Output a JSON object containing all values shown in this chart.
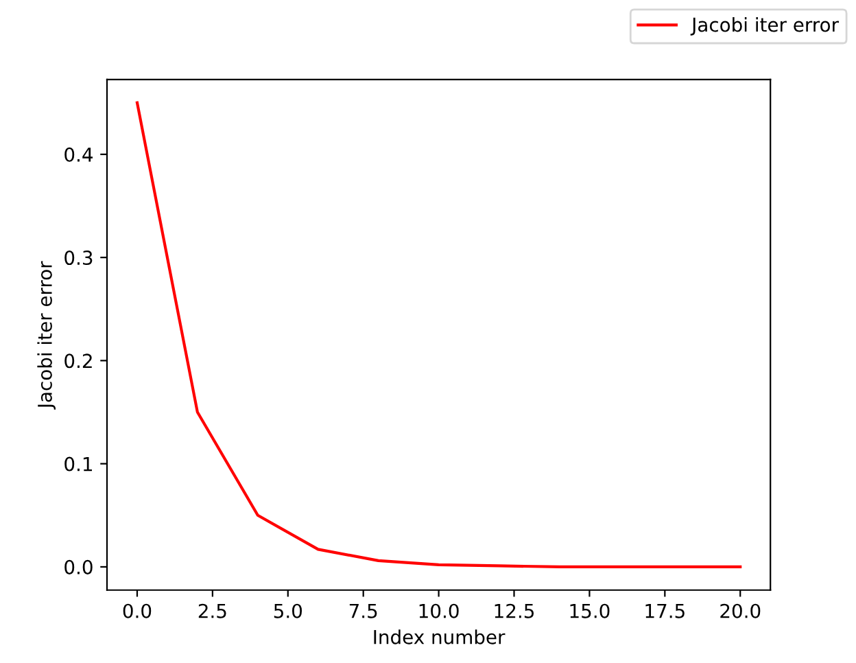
{
  "chart_data": {
    "type": "line",
    "xlabel": "Index number",
    "ylabel": "Jacobi iter error",
    "x": [
      0,
      2,
      4,
      6,
      8,
      10,
      12,
      14,
      16,
      18,
      20
    ],
    "series": [
      {
        "name": "Jacobi iter error",
        "color": "#ff0000",
        "values": [
          0.45,
          0.15,
          0.05,
          0.017,
          0.006,
          0.002,
          0.001,
          0.0,
          0.0,
          0.0,
          0.0
        ]
      }
    ],
    "xlim": [
      -1,
      21
    ],
    "ylim": [
      -0.0225,
      0.4725
    ],
    "xticks": [
      {
        "value": 0,
        "label": "0.0"
      },
      {
        "value": 2.5,
        "label": "2.5"
      },
      {
        "value": 5,
        "label": "5.0"
      },
      {
        "value": 7.5,
        "label": "7.5"
      },
      {
        "value": 10,
        "label": "10.0"
      },
      {
        "value": 12.5,
        "label": "12.5"
      },
      {
        "value": 15,
        "label": "15.0"
      },
      {
        "value": 17.5,
        "label": "17.5"
      },
      {
        "value": 20,
        "label": "20.0"
      }
    ],
    "yticks": [
      {
        "value": 0,
        "label": "0.0"
      },
      0.1,
      0.2,
      0.3,
      0.4
    ],
    "legend": "top right",
    "line_style": "solid",
    "marker": "none"
  }
}
